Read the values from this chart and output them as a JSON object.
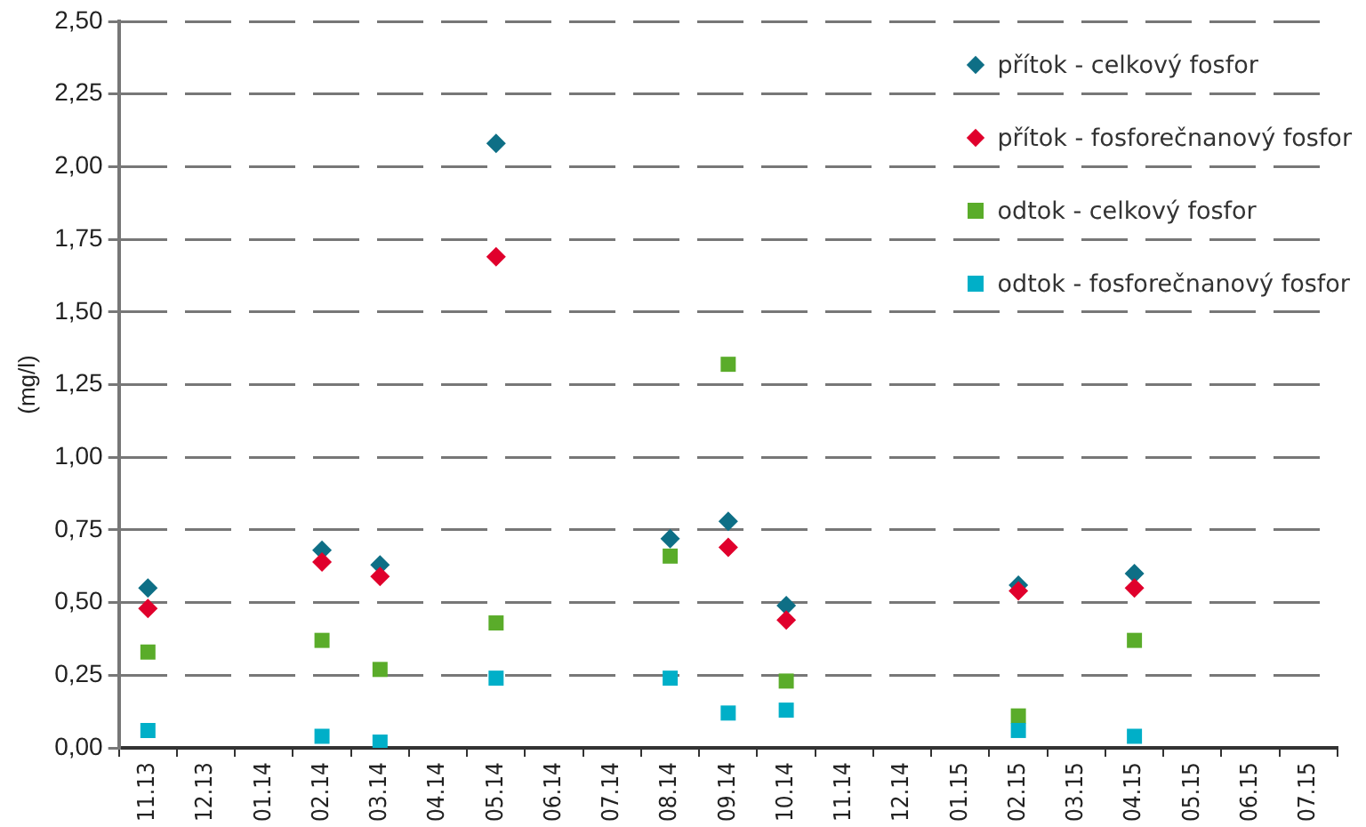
{
  "chart_data": {
    "type": "scatter",
    "ylabel": "(mg/l)",
    "categories": [
      "11.13",
      "12.13",
      "01.14",
      "02.14",
      "03.14",
      "04.14",
      "05.14",
      "06.14",
      "07.14",
      "08.14",
      "09.14",
      "10.14",
      "11.14",
      "12.14",
      "01.15",
      "02.15",
      "03.15",
      "04.15",
      "05.15",
      "06.15",
      "07.15"
    ],
    "series": [
      {
        "name": "přítok - celkový fosfor",
        "color": "#0e6f86",
        "marker": "diamond",
        "values": [
          0.55,
          null,
          null,
          0.68,
          0.63,
          null,
          2.08,
          null,
          null,
          0.72,
          0.78,
          0.49,
          null,
          null,
          null,
          0.56,
          null,
          0.6,
          null,
          null,
          null
        ]
      },
      {
        "name": "přítok - fosforečnanový fosfor",
        "color": "#e0002c",
        "marker": "diamond",
        "values": [
          0.48,
          null,
          null,
          0.64,
          0.59,
          null,
          1.69,
          null,
          null,
          null,
          0.69,
          0.44,
          null,
          null,
          null,
          0.54,
          null,
          0.55,
          null,
          null,
          null
        ]
      },
      {
        "name": "odtok - celkový fosfor",
        "color": "#5aac2a",
        "marker": "square",
        "values": [
          0.33,
          null,
          null,
          0.37,
          0.27,
          null,
          0.43,
          null,
          null,
          0.66,
          1.32,
          0.23,
          null,
          null,
          null,
          0.11,
          null,
          0.37,
          null,
          null,
          null
        ]
      },
      {
        "name": "odtok - fosforečnanový fosfor",
        "color": "#00afc8",
        "marker": "square",
        "values": [
          0.06,
          null,
          null,
          0.04,
          0.02,
          null,
          0.24,
          null,
          null,
          0.24,
          0.12,
          0.13,
          null,
          null,
          null,
          0.06,
          null,
          0.04,
          null,
          null,
          null
        ]
      }
    ],
    "ylim": [
      0,
      2.5
    ],
    "yticks": [
      {
        "value": 0,
        "label": "0,00"
      },
      {
        "value": 0.25,
        "label": "0,25"
      },
      {
        "value": 0.5,
        "label": "0,50"
      },
      {
        "value": 0.75,
        "label": "0,75"
      },
      {
        "value": 1,
        "label": "1,00"
      },
      {
        "value": 1.25,
        "label": "1,25"
      },
      {
        "value": 1.5,
        "label": "1,50"
      },
      {
        "value": 1.75,
        "label": "1,75"
      },
      {
        "value": 2,
        "label": "2,00"
      },
      {
        "value": 2.25,
        "label": "2,25"
      },
      {
        "value": 2.5,
        "label": "2,50"
      }
    ],
    "grid": "y",
    "legend": "top right"
  }
}
